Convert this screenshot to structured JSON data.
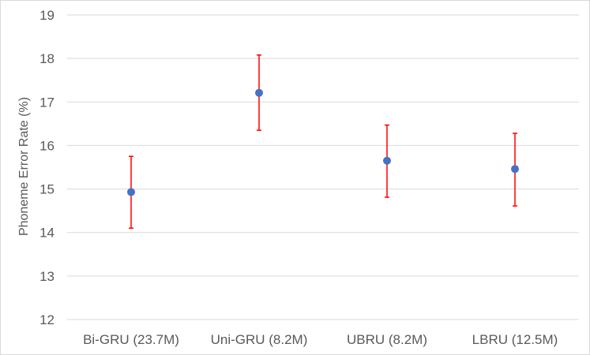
{
  "chart_data": {
    "type": "scatter",
    "title": "",
    "xlabel": "",
    "ylabel": "Phoneme Error Rate (%)",
    "ylim": [
      12,
      19
    ],
    "yticks": [
      12,
      13,
      14,
      15,
      16,
      17,
      18,
      19
    ],
    "grid": true,
    "categories": [
      "Bi-GRU (23.7M)",
      "Uni-GRU (8.2M)",
      "UBRU (8.2M)",
      "LBRU (12.5M)"
    ],
    "values": [
      14.93,
      17.21,
      15.65,
      15.46
    ],
    "error_low": [
      14.1,
      16.35,
      14.81,
      14.61
    ],
    "error_high": [
      15.75,
      18.08,
      16.47,
      16.28
    ],
    "colors": {
      "marker": "#4472C4",
      "error_bar": "#FF0000",
      "grid": "#D9D9D9",
      "text": "#595959"
    }
  }
}
